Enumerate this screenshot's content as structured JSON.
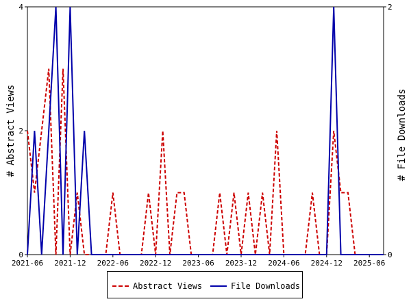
{
  "chart_data": {
    "type": "line",
    "x": [
      "2021-06",
      "2021-07",
      "2021-08",
      "2021-09",
      "2021-10",
      "2021-11",
      "2021-12",
      "2022-01",
      "2022-02",
      "2022-03",
      "2022-04",
      "2022-05",
      "2022-06",
      "2022-07",
      "2022-08",
      "2022-09",
      "2022-10",
      "2022-11",
      "2022-12",
      "2023-01",
      "2023-02",
      "2023-03",
      "2023-04",
      "2023-05",
      "2023-06",
      "2023-07",
      "2023-08",
      "2023-09",
      "2023-10",
      "2023-11",
      "2023-12",
      "2024-01",
      "2024-02",
      "2024-03",
      "2024-04",
      "2024-05",
      "2024-06",
      "2024-07",
      "2024-08",
      "2024-09",
      "2024-10",
      "2024-11",
      "2024-12",
      "2025-01",
      "2025-02",
      "2025-03",
      "2025-04",
      "2025-05",
      "2025-06",
      "2025-07",
      "2025-08"
    ],
    "xtick_labels": [
      "2021-06",
      "2021-12",
      "2022-06",
      "2022-12",
      "2023-06",
      "2023-12",
      "2024-06",
      "2024-12",
      "2025-06"
    ],
    "series": [
      {
        "name": "Abstract Views",
        "axis": "left",
        "color": "#cc0000",
        "style": "dashed",
        "values": [
          2,
          1,
          2,
          3,
          0,
          3,
          0,
          1,
          0,
          0,
          0,
          0,
          1,
          0,
          0,
          0,
          0,
          1,
          0,
          2,
          0,
          1,
          1,
          0,
          0,
          0,
          0,
          1,
          0,
          1,
          0,
          1,
          0,
          1,
          0,
          2,
          0,
          0,
          0,
          0,
          1,
          0,
          0,
          2,
          1,
          1,
          0,
          0,
          0,
          0,
          0
        ]
      },
      {
        "name": "File Downloads",
        "axis": "right",
        "color": "#0000aa",
        "style": "solid",
        "values": [
          0,
          1,
          0,
          1,
          2,
          0,
          2,
          0,
          1,
          0,
          0,
          0,
          0,
          0,
          0,
          0,
          0,
          0,
          0,
          0,
          0,
          0,
          0,
          0,
          0,
          0,
          0,
          0,
          0,
          0,
          0,
          0,
          0,
          0,
          0,
          0,
          0,
          0,
          0,
          0,
          0,
          0,
          0,
          2,
          0,
          0,
          0,
          0,
          0,
          0,
          0
        ]
      }
    ],
    "ylabel_left": "# Abstract Views",
    "ylabel_right": "# File Downloads",
    "ylim_left": [
      0,
      4
    ],
    "ylim_right": [
      0,
      2
    ],
    "yticks_left": [
      "0",
      "2",
      "4"
    ],
    "yticks_right": [
      "0",
      "2"
    ],
    "grid": false,
    "legend_position": "bottom"
  },
  "legend": {
    "abstract_label": "Abstract Views",
    "downloads_label": "File Downloads"
  }
}
